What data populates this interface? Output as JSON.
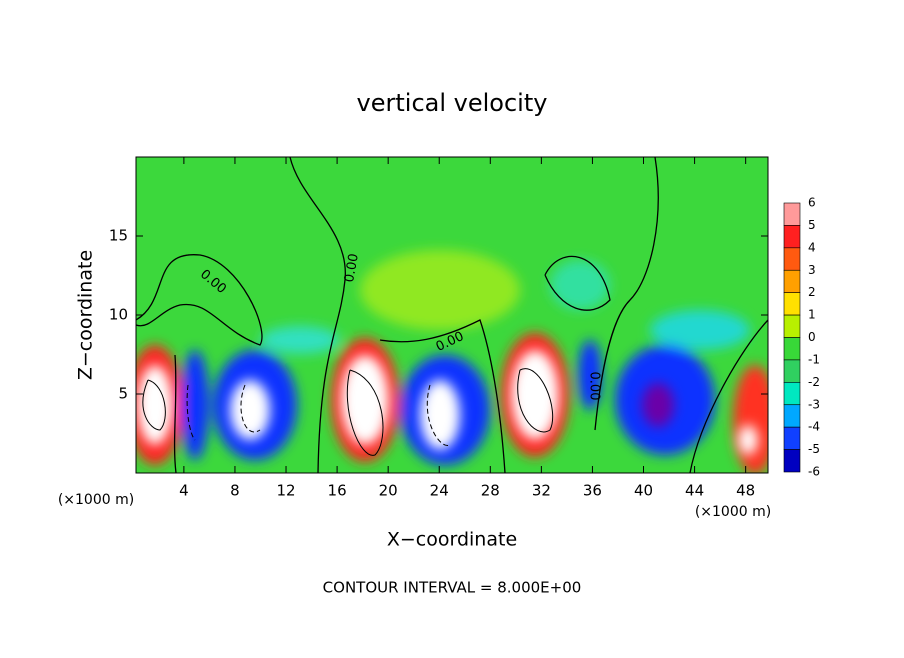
{
  "chart_data": {
    "type": "contour",
    "title": "vertical velocity",
    "xlabel": "X−coordinate",
    "ylabel": "Z−coordinate",
    "x_unit_left": "(×1000 m)",
    "x_unit_right": "(×1000 m)",
    "footer": "CONTOUR INTERVAL = 8.000E+00",
    "xlim": [
      0.25,
      49.75
    ],
    "xticks": [
      4,
      8,
      12,
      16,
      20,
      24,
      28,
      32,
      36,
      40,
      44,
      48
    ],
    "ylim": [
      0,
      20
    ],
    "yticks": [
      5,
      10,
      15
    ],
    "contour_labels": [
      "0.00",
      "0.00",
      "0.00",
      "0.00"
    ],
    "colorbar": {
      "ticks": [
        6,
        5,
        4,
        3,
        2,
        1,
        0,
        -1,
        -2,
        -3,
        -4,
        -5,
        -6
      ],
      "colors": [
        "#ff9a9a",
        "#ff2020",
        "#ff5a10",
        "#ffa000",
        "#ffe000",
        "#b8f000",
        "#38d838",
        "#30d060",
        "#00e8c0",
        "#00a8ff",
        "#1040ff",
        "#0000c0",
        "#6a00a8"
      ]
    }
  }
}
